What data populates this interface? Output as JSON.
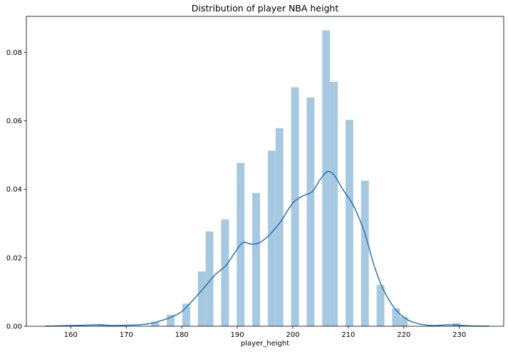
{
  "chart_data": {
    "type": "bar",
    "title": "Distribution of player NBA height",
    "xlabel": "player_height",
    "ylabel": "",
    "xlim": [
      152,
      238
    ],
    "ylim": [
      0,
      0.0905
    ],
    "xticks": [
      160,
      170,
      180,
      190,
      200,
      210,
      220,
      230
    ],
    "yticks": [
      0.0,
      0.02,
      0.04,
      0.06,
      0.08
    ],
    "ytick_labels": [
      "0.00",
      "0.02",
      "0.04",
      "0.06",
      "0.08"
    ],
    "grid": false,
    "colors": {
      "bars": "#a6c8e1",
      "kde": "#2a74b0"
    },
    "histogram": {
      "bin_width": 1.4,
      "bins": [
        {
          "x0": 160.5,
          "density": 0.0003
        },
        {
          "x0": 164.7,
          "density": 0.0006
        },
        {
          "x0": 174.5,
          "density": 0.0013
        },
        {
          "x0": 177.3,
          "density": 0.0033
        },
        {
          "x0": 180.1,
          "density": 0.0066
        },
        {
          "x0": 182.9,
          "density": 0.016
        },
        {
          "x0": 184.3,
          "density": 0.0277
        },
        {
          "x0": 187.1,
          "density": 0.0312
        },
        {
          "x0": 189.9,
          "density": 0.0477
        },
        {
          "x0": 192.7,
          "density": 0.0389
        },
        {
          "x0": 195.5,
          "density": 0.0513
        },
        {
          "x0": 196.9,
          "density": 0.0579
        },
        {
          "x0": 199.7,
          "density": 0.0698
        },
        {
          "x0": 202.5,
          "density": 0.0668
        },
        {
          "x0": 205.3,
          "density": 0.0864
        },
        {
          "x0": 206.7,
          "density": 0.0714
        },
        {
          "x0": 209.5,
          "density": 0.0603
        },
        {
          "x0": 212.3,
          "density": 0.0425
        },
        {
          "x0": 215.1,
          "density": 0.012
        },
        {
          "x0": 217.9,
          "density": 0.0052
        },
        {
          "x0": 219.3,
          "density": 0.0028
        },
        {
          "x0": 228.8,
          "density": 0.0009
        }
      ]
    },
    "kde": {
      "x": [
        155.4,
        160,
        162.5,
        165,
        167.5,
        170,
        172,
        174,
        176,
        178,
        180,
        182,
        184,
        186,
        188,
        189.5,
        191,
        192.5,
        194,
        196,
        198,
        200,
        202,
        203.5,
        205,
        206.3,
        207.5,
        209,
        211,
        213,
        214.5,
        216,
        218,
        220,
        222,
        225,
        228,
        230,
        232,
        235.4
      ],
      "y": [
        0.0,
        0.0002,
        0.0003,
        0.0004,
        0.0002,
        0.0003,
        0.0004,
        0.0007,
        0.0015,
        0.0026,
        0.0043,
        0.0076,
        0.0112,
        0.015,
        0.0178,
        0.0214,
        0.0244,
        0.024,
        0.0244,
        0.027,
        0.031,
        0.036,
        0.0382,
        0.0393,
        0.043,
        0.0452,
        0.044,
        0.04,
        0.035,
        0.027,
        0.0185,
        0.0118,
        0.006,
        0.0026,
        0.001,
        0.0002,
        0.0004,
        0.0003,
        0.0001,
        0.0
      ]
    }
  }
}
